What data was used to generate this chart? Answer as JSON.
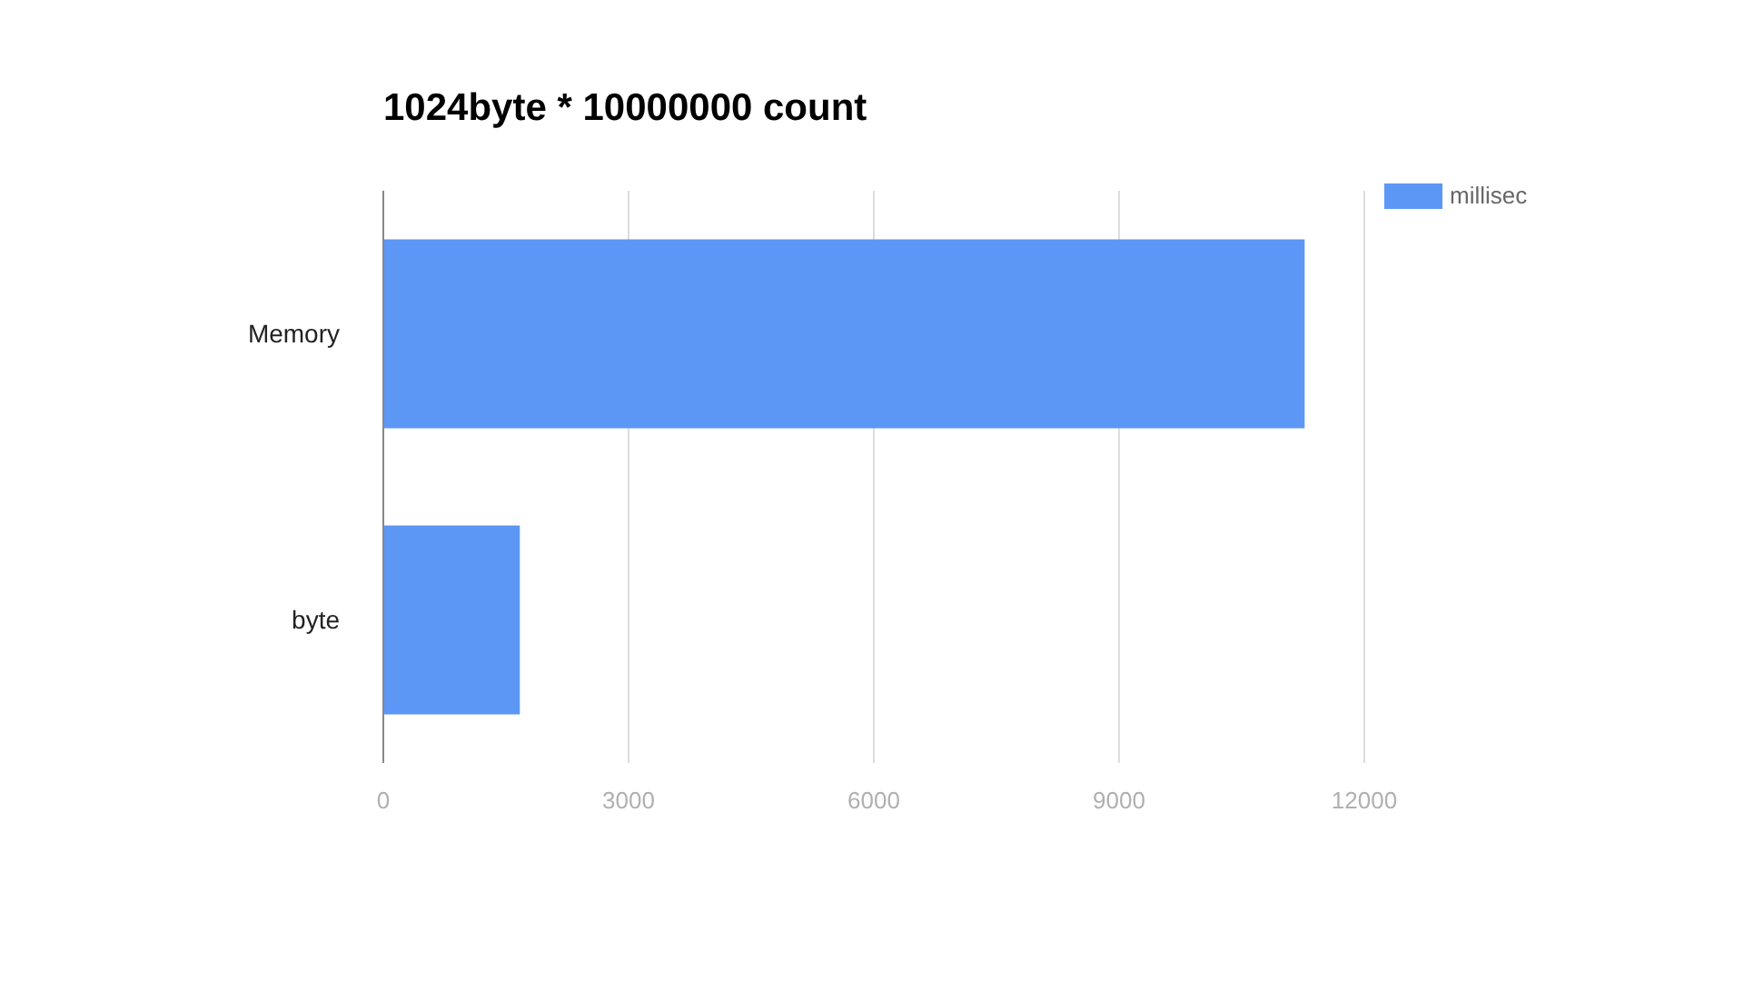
{
  "chart_data": {
    "type": "bar",
    "orientation": "horizontal",
    "title": "1024byte * 10000000 count",
    "categories": [
      "Memory",
      "byte"
    ],
    "series": [
      {
        "name": "millisec",
        "color": "#5c97f6",
        "values": [
          11270,
          1670
        ]
      }
    ],
    "xlim": [
      0,
      12000
    ],
    "xticks": [
      0,
      3000,
      6000,
      9000,
      12000
    ],
    "grid": "x",
    "legend": "top right"
  }
}
